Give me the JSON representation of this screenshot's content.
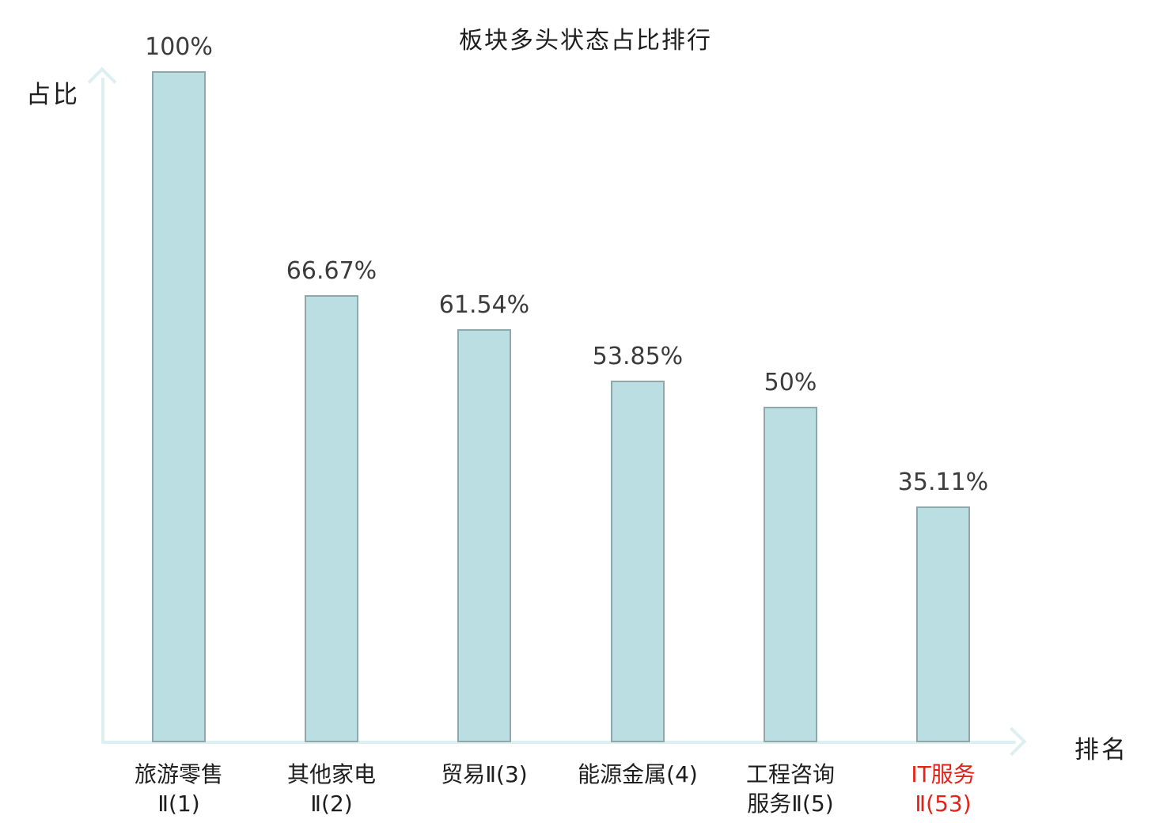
{
  "title": "板块多头状态占比排行",
  "axes": {
    "y_label": "占比",
    "x_label": "排名"
  },
  "colors": {
    "bar_fill": "#badee2",
    "bar_border": "#8fa8ab",
    "axis": "#ddeff0",
    "text_dark": "#1e1e1e",
    "text_value": "#3c3c3c",
    "highlight": "#e42318"
  },
  "chart_data": {
    "type": "bar",
    "title": "板块多头状态占比排行",
    "xlabel": "排名",
    "ylabel": "占比",
    "ylim": [
      0,
      100
    ],
    "grid": false,
    "legend": false,
    "categories": [
      "旅游零售Ⅱ(1)",
      "其他家电Ⅱ(2)",
      "贸易Ⅱ(3)",
      "能源金属(4)",
      "工程咨询服务Ⅱ(5)",
      "IT服务Ⅱ(53)"
    ],
    "category_lines": [
      [
        "旅游零售",
        "Ⅱ(1)"
      ],
      [
        "其他家电",
        "Ⅱ(2)"
      ],
      [
        "贸易Ⅱ(3)"
      ],
      [
        "能源金属(4)"
      ],
      [
        "工程咨询",
        "服务Ⅱ(5)"
      ],
      [
        "IT服务",
        "Ⅱ(53)"
      ]
    ],
    "values": [
      100,
      66.67,
      61.54,
      53.85,
      50,
      35.11
    ],
    "value_labels": [
      "100%",
      "66.67%",
      "61.54%",
      "53.85%",
      "50%",
      "35.11%"
    ],
    "highlighted_index": 5
  }
}
